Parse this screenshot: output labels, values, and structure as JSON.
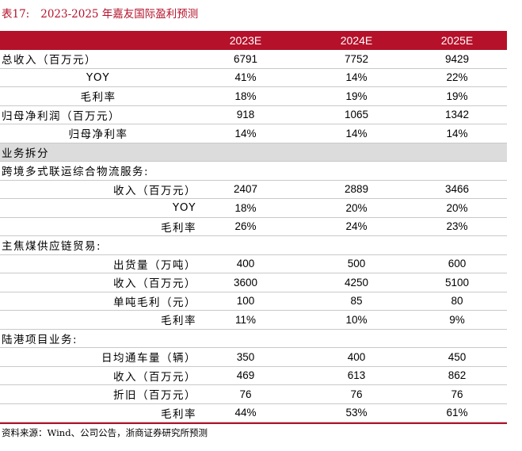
{
  "title": {
    "number": "表17:",
    "text": "2023-2025 年嘉友国际盈利预测"
  },
  "columns": [
    "2023E",
    "2024E",
    "2025E"
  ],
  "rows": [
    {
      "label": "总收入（百万元）",
      "align": "left",
      "values": [
        "6791",
        "7752",
        "9429"
      ],
      "section": false
    },
    {
      "label": "YOY",
      "align": "center",
      "values": [
        "41%",
        "14%",
        "22%"
      ],
      "section": false
    },
    {
      "label": "毛利率",
      "align": "center",
      "values": [
        "18%",
        "19%",
        "19%"
      ],
      "section": false
    },
    {
      "label": "归母净利润（百万元）",
      "align": "left",
      "values": [
        "918",
        "1065",
        "1342"
      ],
      "section": false
    },
    {
      "label": "归母净利率",
      "align": "center",
      "values": [
        "14%",
        "14%",
        "14%"
      ],
      "section": false
    },
    {
      "label": "业务拆分",
      "align": "left",
      "values": [
        "",
        "",
        ""
      ],
      "section": true
    },
    {
      "label": "跨境多式联运综合物流服务:",
      "align": "left",
      "values": [
        "",
        "",
        ""
      ],
      "section": false
    },
    {
      "label": "收入（百万元）",
      "align": "right",
      "values": [
        "2407",
        "2889",
        "3466"
      ],
      "section": false
    },
    {
      "label": "YOY",
      "align": "right",
      "values": [
        "18%",
        "20%",
        "20%"
      ],
      "section": false
    },
    {
      "label": "毛利率",
      "align": "right",
      "values": [
        "26%",
        "24%",
        "23%"
      ],
      "section": false
    },
    {
      "label": "主焦煤供应链贸易:",
      "align": "left",
      "values": [
        "",
        "",
        ""
      ],
      "section": false
    },
    {
      "label": "出货量（万吨）",
      "align": "right",
      "values": [
        "400",
        "500",
        "600"
      ],
      "section": false
    },
    {
      "label": "收入（百万元）",
      "align": "right",
      "values": [
        "3600",
        "4250",
        "5100"
      ],
      "section": false
    },
    {
      "label": "单吨毛利（元）",
      "align": "right",
      "values": [
        "100",
        "85",
        "80"
      ],
      "section": false
    },
    {
      "label": "毛利率",
      "align": "right",
      "values": [
        "11%",
        "10%",
        "9%"
      ],
      "section": false
    },
    {
      "label": "陆港项目业务:",
      "align": "left",
      "values": [
        "",
        "",
        ""
      ],
      "section": false
    },
    {
      "label": "日均通车量（辆）",
      "align": "right",
      "values": [
        "350",
        "400",
        "450"
      ],
      "section": false
    },
    {
      "label": "收入（百万元）",
      "align": "right",
      "values": [
        "469",
        "613",
        "862"
      ],
      "section": false
    },
    {
      "label": "折旧（百万元）",
      "align": "right",
      "values": [
        "76",
        "76",
        "76"
      ],
      "section": false
    },
    {
      "label": "毛利率",
      "align": "right",
      "values": [
        "44%",
        "53%",
        "61%"
      ],
      "section": false
    }
  ],
  "source": "资料来源：Wind、公司公告，浙商证券研究所预测",
  "colors": {
    "accent": "#b5112a",
    "section_bg": "#dcdcdc",
    "rule": "#c9c9c9"
  }
}
